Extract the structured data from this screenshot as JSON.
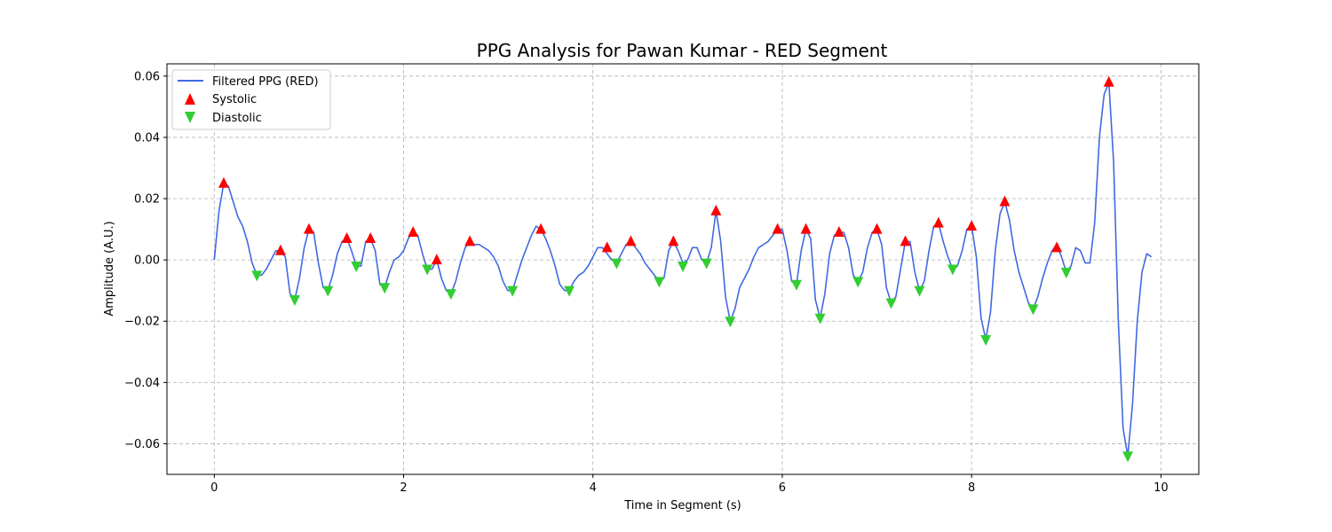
{
  "chart_data": {
    "type": "line",
    "title": "PPG Analysis for Pawan Kumar - RED Segment",
    "xlabel": "Time in Segment (s)",
    "ylabel": "Amplitude (A.U.)",
    "xlim": [
      -0.5,
      10.4
    ],
    "ylim": [
      -0.07,
      0.064
    ],
    "xticks": [
      0,
      2,
      4,
      6,
      8,
      10
    ],
    "yticks": [
      -0.06,
      -0.04,
      -0.02,
      0.0,
      0.02,
      0.04,
      0.06
    ],
    "xtick_labels": [
      "0",
      "2",
      "4",
      "6",
      "8",
      "10"
    ],
    "ytick_labels": [
      "−0.06",
      "−0.04",
      "−0.02",
      "0.00",
      "0.02",
      "0.04",
      "0.06"
    ],
    "grid": true,
    "legend_position": "upper-left",
    "colors": {
      "line": "#4169e1",
      "systolic": "#ff0000",
      "diastolic": "#32cd32"
    },
    "series": [
      {
        "name": "Filtered PPG (RED)",
        "style": "line",
        "x": [
          0,
          0.05,
          0.1,
          0.15,
          0.2,
          0.25,
          0.3,
          0.35,
          0.4,
          0.45,
          0.5,
          0.55,
          0.6,
          0.65,
          0.7,
          0.75,
          0.8,
          0.85,
          0.9,
          0.95,
          1.0,
          1.05,
          1.1,
          1.15,
          1.2,
          1.25,
          1.3,
          1.35,
          1.4,
          1.45,
          1.5,
          1.55,
          1.6,
          1.65,
          1.7,
          1.75,
          1.8,
          1.85,
          1.9,
          1.95,
          2.0,
          2.05,
          2.1,
          2.15,
          2.2,
          2.25,
          2.3,
          2.35,
          2.4,
          2.45,
          2.5,
          2.55,
          2.6,
          2.65,
          2.7,
          2.75,
          2.8,
          2.85,
          2.9,
          2.95,
          3.0,
          3.05,
          3.1,
          3.15,
          3.2,
          3.25,
          3.3,
          3.35,
          3.4,
          3.45,
          3.5,
          3.55,
          3.6,
          3.65,
          3.7,
          3.75,
          3.8,
          3.85,
          3.9,
          3.95,
          4.0,
          4.05,
          4.1,
          4.15,
          4.2,
          4.25,
          4.3,
          4.35,
          4.4,
          4.45,
          4.5,
          4.55,
          4.6,
          4.65,
          4.7,
          4.75,
          4.8,
          4.85,
          4.9,
          4.95,
          5.0,
          5.05,
          5.1,
          5.15,
          5.2,
          5.25,
          5.3,
          5.35,
          5.4,
          5.45,
          5.5,
          5.55,
          5.6,
          5.65,
          5.7,
          5.75,
          5.8,
          5.85,
          5.9,
          5.95,
          6.0,
          6.05,
          6.1,
          6.15,
          6.2,
          6.25,
          6.3,
          6.35,
          6.4,
          6.45,
          6.5,
          6.55,
          6.6,
          6.65,
          6.7,
          6.75,
          6.8,
          6.85,
          6.9,
          6.95,
          7.0,
          7.05,
          7.1,
          7.15,
          7.2,
          7.25,
          7.3,
          7.35,
          7.4,
          7.45,
          7.5,
          7.55,
          7.6,
          7.65,
          7.7,
          7.75,
          7.8,
          7.85,
          7.9,
          7.95,
          8.0,
          8.05,
          8.1,
          8.15,
          8.2,
          8.25,
          8.3,
          8.35,
          8.4,
          8.45,
          8.5,
          8.55,
          8.6,
          8.65,
          8.7,
          8.75,
          8.8,
          8.85,
          8.9,
          8.95,
          9.0,
          9.05,
          9.1,
          9.15,
          9.2,
          9.25,
          9.3,
          9.35,
          9.4,
          9.45,
          9.5,
          9.55,
          9.6,
          9.65,
          9.7,
          9.75,
          9.8,
          9.85,
          9.9
        ],
        "y": [
          0.0,
          0.016,
          0.025,
          0.024,
          0.019,
          0.014,
          0.011,
          0.006,
          -0.001,
          -0.005,
          -0.005,
          -0.003,
          0.0,
          0.003,
          0.003,
          0.001,
          -0.011,
          -0.013,
          -0.006,
          0.004,
          0.01,
          0.009,
          -0.001,
          -0.009,
          -0.01,
          -0.005,
          0.002,
          0.006,
          0.007,
          0.003,
          -0.002,
          -0.002,
          0.006,
          0.007,
          0.003,
          -0.008,
          -0.009,
          -0.004,
          0.0,
          0.001,
          0.003,
          0.007,
          0.009,
          0.008,
          0.002,
          -0.003,
          -0.003,
          0.0,
          -0.006,
          -0.01,
          -0.011,
          -0.007,
          -0.001,
          0.004,
          0.006,
          0.005,
          0.005,
          0.004,
          0.003,
          0.001,
          -0.002,
          -0.007,
          -0.01,
          -0.01,
          -0.005,
          0.0,
          0.004,
          0.008,
          0.011,
          0.01,
          0.007,
          0.003,
          -0.002,
          -0.008,
          -0.01,
          -0.01,
          -0.007,
          -0.005,
          -0.004,
          -0.002,
          0.001,
          0.004,
          0.004,
          0.002,
          0.0,
          -0.001,
          0.002,
          0.005,
          0.006,
          0.004,
          0.002,
          -0.001,
          -0.003,
          -0.005,
          -0.007,
          -0.006,
          0.003,
          0.006,
          0.003,
          -0.001,
          0.0,
          0.004,
          0.004,
          0.0,
          -0.001,
          0.004,
          0.016,
          0.006,
          -0.012,
          -0.02,
          -0.016,
          -0.009,
          -0.006,
          -0.003,
          0.001,
          0.004,
          0.005,
          0.006,
          0.008,
          0.01,
          0.01,
          0.003,
          -0.007,
          -0.008,
          0.003,
          0.01,
          0.007,
          -0.013,
          -0.019,
          -0.011,
          0.002,
          0.008,
          0.009,
          0.009,
          0.004,
          -0.005,
          -0.007,
          -0.004,
          0.004,
          0.009,
          0.01,
          0.005,
          -0.009,
          -0.014,
          -0.012,
          -0.003,
          0.006,
          0.006,
          -0.004,
          -0.01,
          -0.007,
          0.003,
          0.011,
          0.012,
          0.006,
          0.001,
          -0.003,
          -0.002,
          0.003,
          0.01,
          0.011,
          0.001,
          -0.019,
          -0.026,
          -0.017,
          0.003,
          0.015,
          0.019,
          0.013,
          0.003,
          -0.004,
          -0.009,
          -0.014,
          -0.016,
          -0.012,
          -0.006,
          -0.001,
          0.003,
          0.005,
          0.001,
          -0.004,
          -0.002,
          0.004,
          0.003,
          -0.001,
          -0.001,
          0.012,
          0.04,
          0.054,
          0.058,
          0.032,
          -0.02,
          -0.055,
          -0.064,
          -0.047,
          -0.02,
          -0.004,
          0.002,
          0.001
        ]
      },
      {
        "name": "Systolic",
        "style": "marker-up",
        "x": [
          0.1,
          0.7,
          1.0,
          1.4,
          1.65,
          2.1,
          2.35,
          2.7,
          3.45,
          4.15,
          4.4,
          4.85,
          5.3,
          5.95,
          6.25,
          6.6,
          7.0,
          7.3,
          7.65,
          8.0,
          8.35,
          8.9,
          9.45
        ],
        "y": [
          0.025,
          0.003,
          0.01,
          0.007,
          0.007,
          0.009,
          0.0,
          0.006,
          0.01,
          0.004,
          0.006,
          0.006,
          0.016,
          0.01,
          0.01,
          0.009,
          0.01,
          0.006,
          0.012,
          0.011,
          0.019,
          0.004,
          0.058
        ]
      },
      {
        "name": "Diastolic",
        "style": "marker-down",
        "x": [
          0.45,
          0.85,
          1.2,
          1.5,
          1.8,
          2.25,
          2.5,
          3.15,
          3.75,
          4.25,
          4.7,
          4.95,
          5.2,
          5.45,
          6.15,
          6.4,
          6.8,
          7.15,
          7.45,
          7.8,
          8.15,
          8.65,
          9.0,
          9.65
        ],
        "y": [
          -0.005,
          -0.013,
          -0.01,
          -0.002,
          -0.009,
          -0.003,
          -0.011,
          -0.01,
          -0.01,
          -0.001,
          -0.007,
          -0.002,
          -0.001,
          -0.02,
          -0.008,
          -0.019,
          -0.007,
          -0.014,
          -0.01,
          -0.003,
          -0.026,
          -0.016,
          -0.004,
          -0.064
        ]
      }
    ]
  }
}
